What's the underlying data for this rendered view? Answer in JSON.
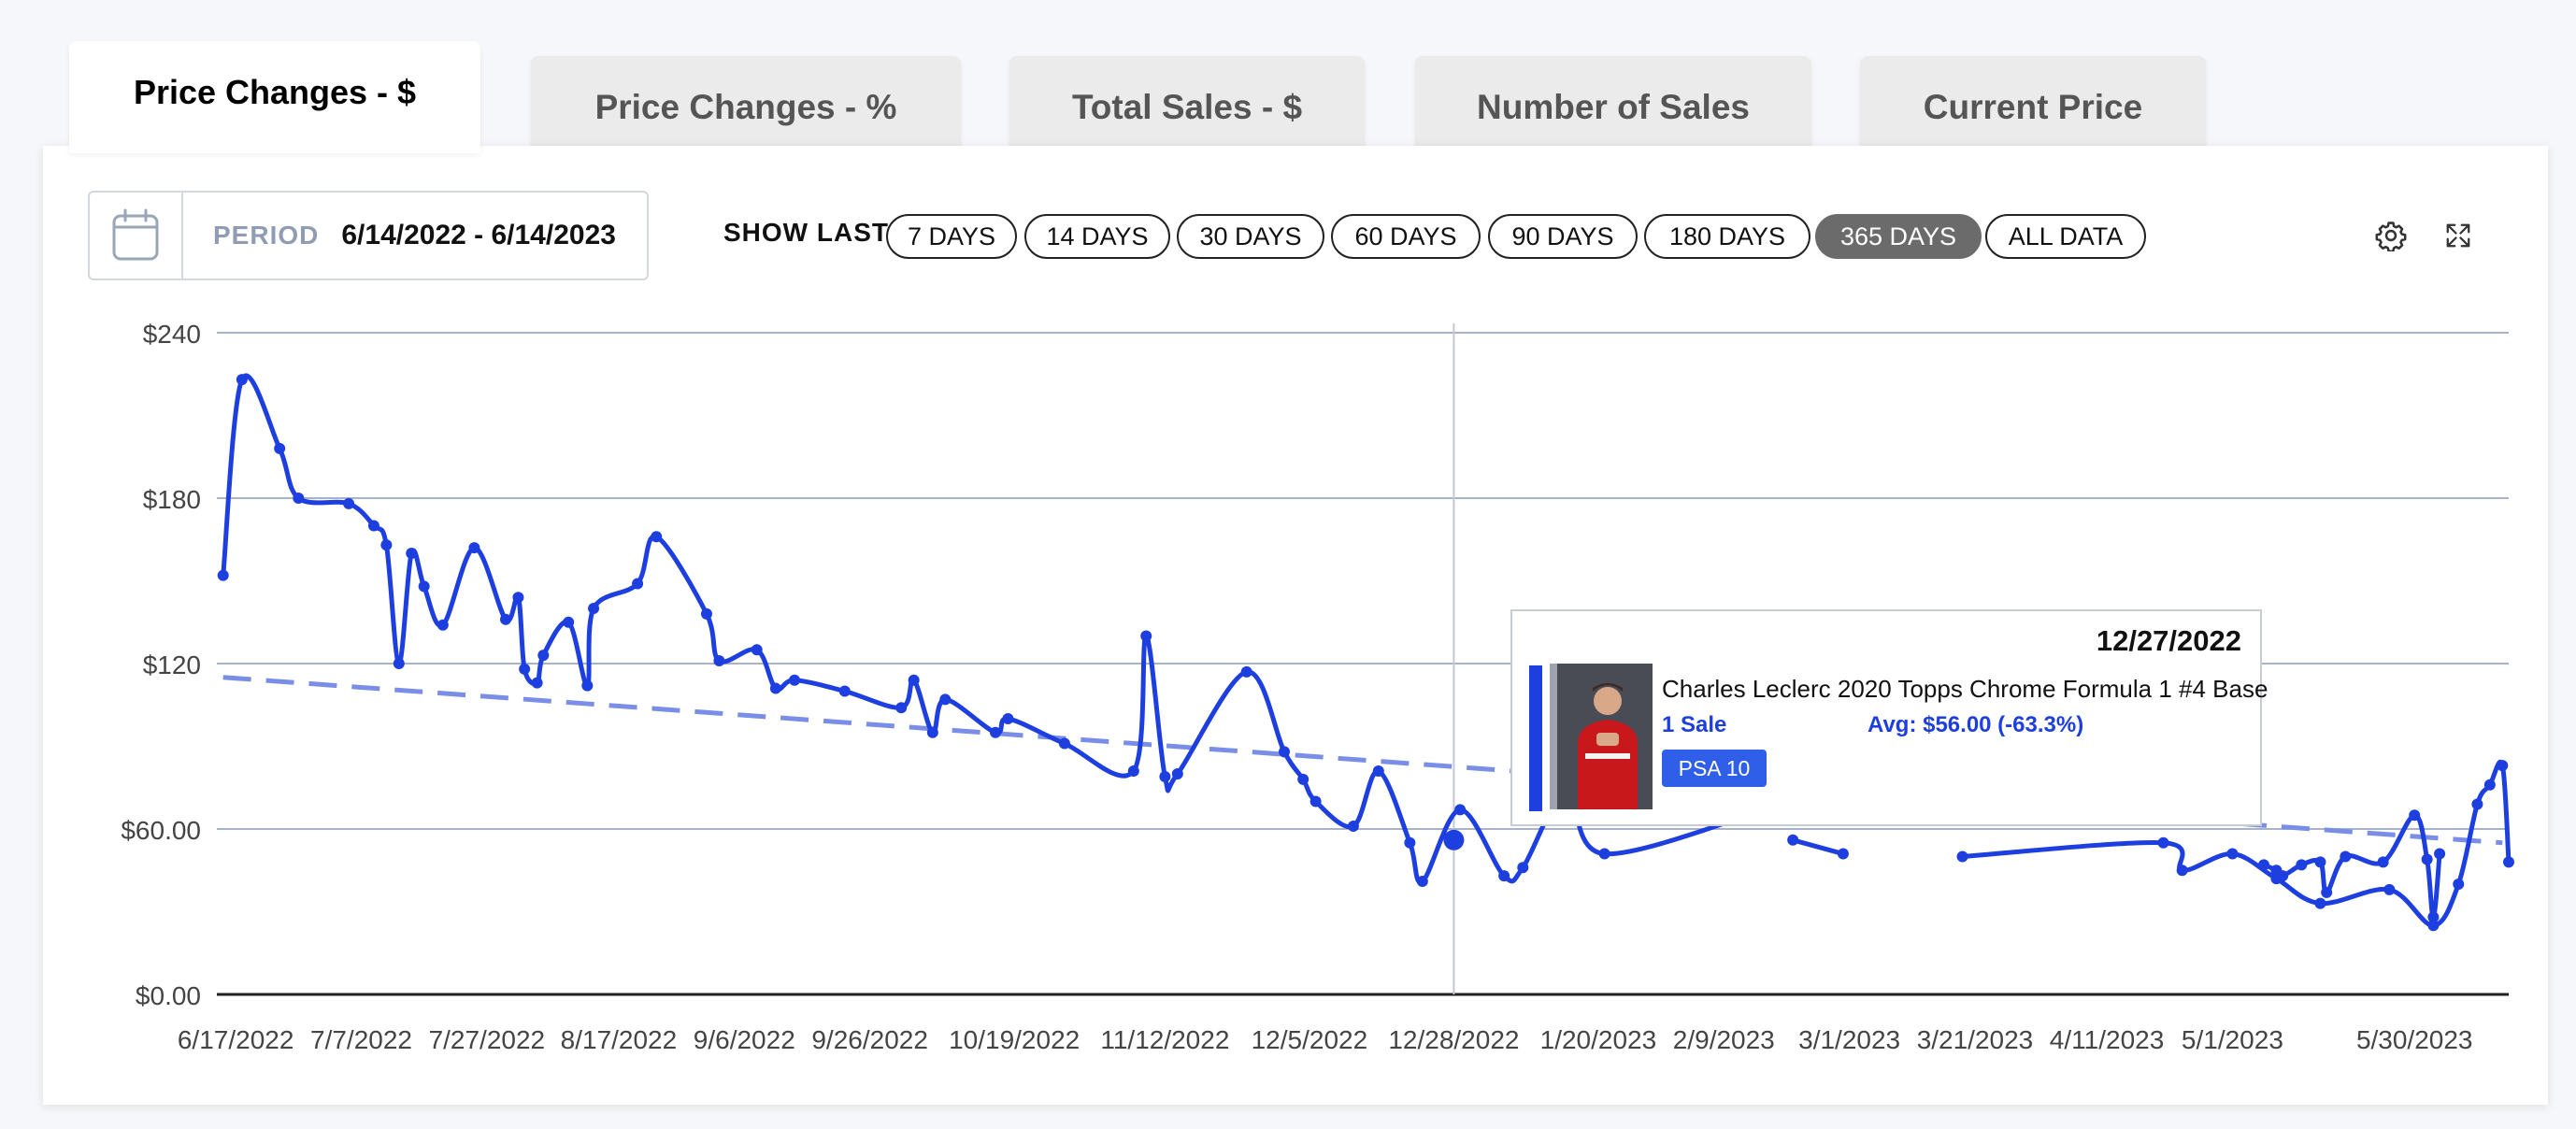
{
  "tabs": [
    {
      "label": "Price Changes - $",
      "active": true
    },
    {
      "label": "Price Changes - %",
      "active": false
    },
    {
      "label": "Total Sales - $",
      "active": false
    },
    {
      "label": "Number of Sales",
      "active": false
    },
    {
      "label": "Current Price",
      "active": false
    }
  ],
  "period": {
    "label": "PERIOD",
    "value": "6/14/2022 - 6/14/2023",
    "icon": "calendar-icon"
  },
  "show_last": {
    "label": "SHOW LAST",
    "options": [
      "7 DAYS",
      "14 DAYS",
      "30 DAYS",
      "60 DAYS",
      "90 DAYS",
      "180 DAYS",
      "365 DAYS",
      "ALL DATA"
    ],
    "selected": "365 DAYS"
  },
  "toolbar": {
    "settings_icon": "gear-icon",
    "expand_icon": "expand-icon"
  },
  "tooltip": {
    "date": "12/27/2022",
    "title": "Charles Leclerc 2020 Topps Chrome Formula 1 #4 Base",
    "sales": "1 Sale",
    "avg": "Avg: $56.00 (-63.3%)",
    "grade": "PSA 10"
  },
  "colors": {
    "line": "#1e3fe0",
    "trend": "#7a8ee8",
    "grid": "#a7b3c8",
    "active_pill": "#6b6b6b"
  },
  "chart_data": {
    "type": "line",
    "y_ticks": [
      "$240",
      "$180",
      "$120",
      "$60.00",
      "$0.00"
    ],
    "x_ticks": [
      "6/17/2022",
      "7/7/2022",
      "7/27/2022",
      "8/17/2022",
      "9/6/2022",
      "9/26/2022",
      "10/19/2022",
      "11/12/2022",
      "12/5/2022",
      "12/28/2022",
      "1/20/2023",
      "2/9/2023",
      "3/1/2023",
      "3/21/2023",
      "4/11/2023",
      "5/1/2023",
      "5/30/2023"
    ],
    "ylim": [
      0,
      240
    ],
    "xlim": [
      "2022-06-14",
      "2023-06-14"
    ],
    "grid": true,
    "series": [
      {
        "points": [
          [
            "2022-06-15",
            152
          ],
          [
            "2022-06-18",
            223
          ],
          [
            "2022-06-24",
            198
          ],
          [
            "2022-06-27",
            180
          ],
          [
            "2022-07-05",
            178
          ],
          [
            "2022-07-09",
            170
          ],
          [
            "2022-07-11",
            163
          ],
          [
            "2022-07-13",
            120
          ],
          [
            "2022-07-15",
            160
          ],
          [
            "2022-07-17",
            148
          ],
          [
            "2022-07-20",
            134
          ],
          [
            "2022-07-25",
            162
          ],
          [
            "2022-07-30",
            136
          ],
          [
            "2022-08-01",
            144
          ],
          [
            "2022-08-02",
            118
          ],
          [
            "2022-08-04",
            113
          ],
          [
            "2022-08-05",
            123
          ],
          [
            "2022-08-09",
            135
          ],
          [
            "2022-08-12",
            112
          ],
          [
            "2022-08-13",
            140
          ],
          [
            "2022-08-20",
            149
          ],
          [
            "2022-08-23",
            166
          ],
          [
            "2022-08-31",
            138
          ],
          [
            "2022-09-02",
            121
          ],
          [
            "2022-09-08",
            125
          ],
          [
            "2022-09-11",
            111
          ],
          [
            "2022-09-14",
            114
          ],
          [
            "2022-09-22",
            110
          ],
          [
            "2022-10-01",
            104
          ],
          [
            "2022-10-03",
            114
          ],
          [
            "2022-10-06",
            95
          ],
          [
            "2022-10-08",
            107
          ],
          [
            "2022-10-16",
            95
          ],
          [
            "2022-10-18",
            100
          ],
          [
            "2022-10-27",
            91
          ],
          [
            "2022-11-07",
            81
          ],
          [
            "2022-11-09",
            130
          ],
          [
            "2022-11-12",
            79
          ],
          [
            "2022-11-14",
            80
          ],
          [
            "2022-11-25",
            117
          ],
          [
            "2022-12-01",
            88
          ],
          [
            "2022-12-04",
            78
          ],
          [
            "2022-12-06",
            70
          ],
          [
            "2022-12-12",
            61
          ],
          [
            "2022-12-16",
            81
          ],
          [
            "2022-12-21",
            55
          ],
          [
            "2022-12-23",
            41
          ],
          [
            "2022-12-29",
            67
          ],
          [
            "2023-01-05",
            43
          ],
          [
            "2023-01-08",
            46
          ],
          [
            "2023-01-15",
            74
          ],
          [
            "2023-01-21",
            51
          ],
          [
            "2023-02-17",
            68
          ],
          [
            "2023-02-19",
            69
          ]
        ]
      },
      {
        "points": [
          [
            "2023-02-20",
            56
          ],
          [
            "2023-02-28",
            51
          ]
        ]
      },
      {
        "points": [
          [
            "2023-03-19",
            50
          ],
          [
            "2023-04-20",
            55
          ],
          [
            "2023-04-23",
            45
          ],
          [
            "2023-05-01",
            51
          ],
          [
            "2023-05-08",
            42
          ],
          [
            "2023-05-15",
            33
          ],
          [
            "2023-05-26",
            38
          ],
          [
            "2023-06-02",
            25
          ],
          [
            "2023-06-06",
            40
          ],
          [
            "2023-06-09",
            69
          ],
          [
            "2023-06-11",
            76
          ],
          [
            "2023-06-13",
            83
          ],
          [
            "2023-06-14",
            48
          ]
        ]
      }
    ],
    "tail": [
      [
        "2023-05-06",
        47
      ],
      [
        "2023-05-08",
        45
      ],
      [
        "2023-05-09",
        43
      ],
      [
        "2023-05-12",
        47
      ],
      [
        "2023-05-15",
        48
      ],
      [
        "2023-05-16",
        37
      ],
      [
        "2023-05-19",
        50
      ],
      [
        "2023-05-25",
        48
      ],
      [
        "2023-05-30",
        65
      ],
      [
        "2023-06-01",
        49
      ],
      [
        "2023-06-02",
        28
      ],
      [
        "2023-06-03",
        51
      ]
    ],
    "trend": [
      [
        "2022-06-15",
        115
      ],
      [
        "2023-06-13",
        55
      ]
    ],
    "highlight": [
      "2022-12-28",
      56
    ]
  }
}
